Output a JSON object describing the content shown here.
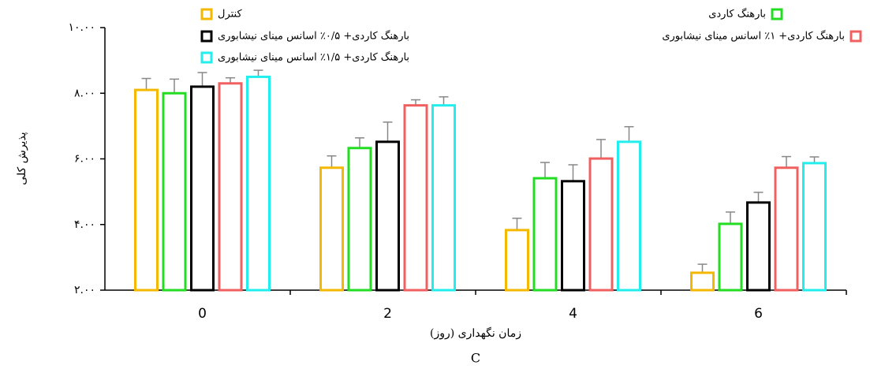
{
  "chart_data": {
    "type": "bar",
    "subtitle": "C",
    "x_label": "زمان نگهداری (روز)",
    "y_label": "پذیرش کلی",
    "categories": [
      "0",
      "2",
      "4",
      "6"
    ],
    "ylim": [
      2,
      10
    ],
    "yticks": [
      {
        "value": 2,
        "label": "۲.۰۰"
      },
      {
        "value": 4,
        "label": "۴.۰۰"
      },
      {
        "value": 6,
        "label": "۶.۰۰"
      },
      {
        "value": 8,
        "label": "۸.۰۰"
      },
      {
        "value": 10,
        "label": "۱۰.۰۰"
      }
    ],
    "series": [
      {
        "name": "کنترل",
        "color": "#f5b800",
        "values": [
          8.1,
          5.73,
          3.83,
          2.53
        ],
        "errors": [
          0.35,
          0.36,
          0.36,
          0.26
        ]
      },
      {
        "name": "بارهنگ کاردی",
        "color": "#22dd22",
        "values": [
          8.0,
          6.33,
          5.41,
          4.02
        ],
        "errors": [
          0.43,
          0.31,
          0.48,
          0.36
        ]
      },
      {
        "name": "بارهنگ کاردی+ ۰/۵٪ اسانس مینای نیشابوری",
        "color": "#000000",
        "values": [
          8.2,
          6.52,
          5.32,
          4.67
        ],
        "errors": [
          0.43,
          0.6,
          0.5,
          0.31
        ]
      },
      {
        "name": "بارهنگ کاردی+ ۱٪ اسانس مینای نیشابوری",
        "color": "#f06060",
        "values": [
          8.3,
          7.63,
          6.01,
          5.73
        ],
        "errors": [
          0.17,
          0.17,
          0.58,
          0.34
        ]
      },
      {
        "name": "بارهنگ کاردی+ ۱/۵٪ اسانس مینای نیشابوری",
        "color": "#22eeee",
        "values": [
          8.5,
          7.63,
          6.52,
          5.87
        ],
        "errors": [
          0.2,
          0.26,
          0.46,
          0.19
        ]
      }
    ]
  }
}
